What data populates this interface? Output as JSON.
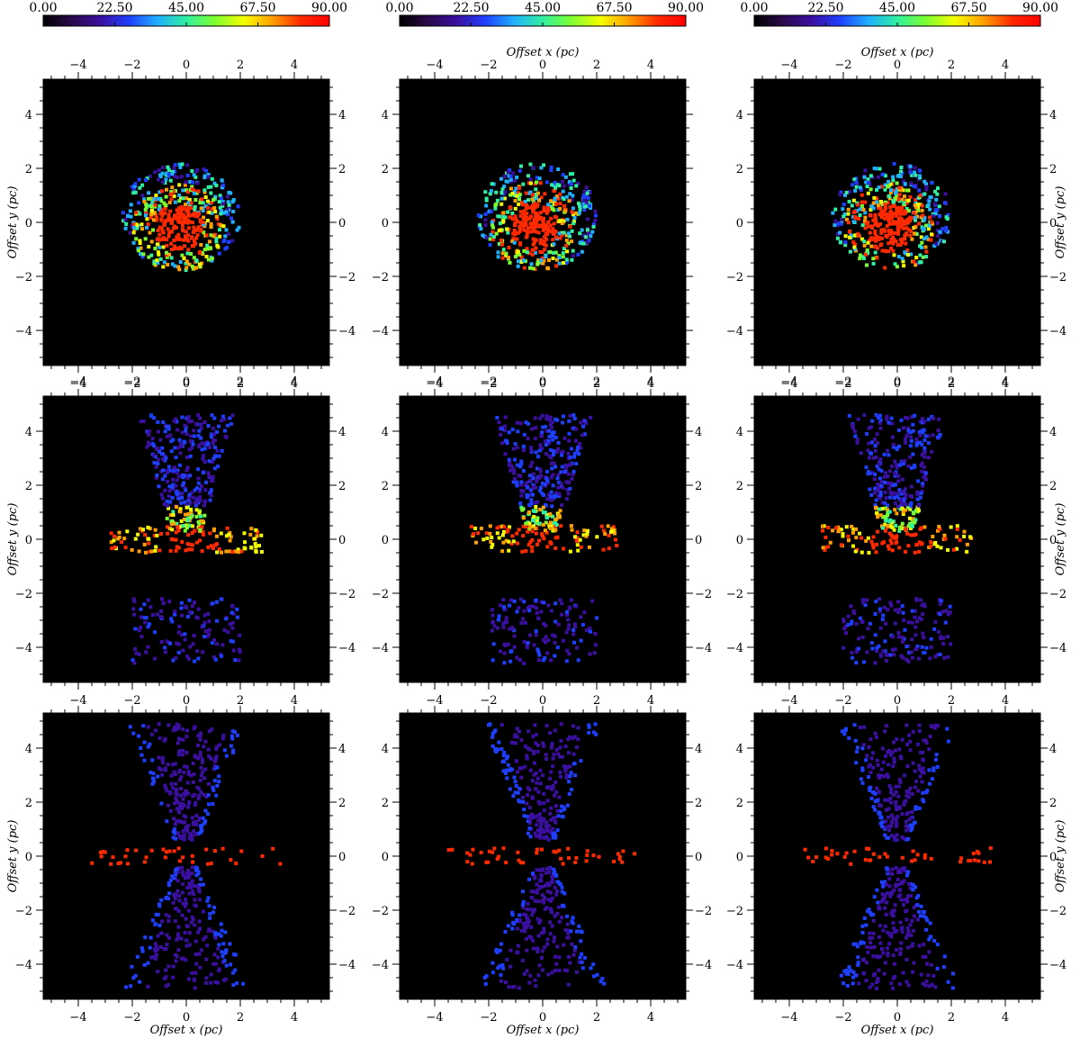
{
  "figure": {
    "colorbar_ticks": [
      "0.00",
      "22.50",
      "45.00",
      "67.50",
      "90.00"
    ],
    "xlabel": "Offset x (pc)",
    "ylabel": "Offset y (pc)",
    "x_tick_labels": [
      "−4",
      "−2",
      "0",
      "2",
      "4"
    ],
    "y_tick_labels": [
      "4",
      "2",
      "0",
      "−2",
      "−4"
    ],
    "colormap": [
      "#000000",
      "#2a0a4a",
      "#3b0fa0",
      "#1f3fff",
      "#1fb0ff",
      "#2ff0a0",
      "#7cff2f",
      "#f5ff00",
      "#ffa000",
      "#ff2a00",
      "#ff0000"
    ]
  },
  "chart_data": [
    {
      "type": "heatmap",
      "panel": "row1-col1",
      "colorbar_range": [
        0,
        90
      ],
      "xlim": [
        -5.3,
        5.3
      ],
      "ylim": [
        -5.3,
        5.3
      ],
      "xlabel": "",
      "ylabel": "Offset y (pc)",
      "x_tick_labels_top": true,
      "x_tick_labels_bottom": true,
      "y_tick_labels_left": true,
      "y_tick_labels_right": true,
      "morphology": "compact blob",
      "center_value": 85,
      "outer_value": 35
    },
    {
      "type": "heatmap",
      "panel": "row1-col2",
      "colorbar_range": [
        0,
        90
      ],
      "xlim": [
        -5.3,
        5.3
      ],
      "ylim": [
        -5.3,
        5.3
      ],
      "xlabel": "Offset x (pc)",
      "ylabel": "",
      "x_tick_labels_top": true,
      "x_tick_labels_bottom": true,
      "y_tick_labels_left": true,
      "y_tick_labels_right": false,
      "morphology": "compact blob",
      "center_value": 85,
      "outer_value": 35
    },
    {
      "type": "heatmap",
      "panel": "row1-col3",
      "colorbar_range": [
        0,
        90
      ],
      "xlim": [
        -5.3,
        5.3
      ],
      "ylim": [
        -5.3,
        5.3
      ],
      "xlabel": "Offset x (pc)",
      "ylabel": "Offset y (pc)",
      "x_tick_labels_top": true,
      "x_tick_labels_bottom": true,
      "y_tick_labels_left": true,
      "y_tick_labels_right": true,
      "morphology": "compact blob",
      "center_value": 85,
      "outer_value": 35
    },
    {
      "type": "heatmap",
      "panel": "row2-col1",
      "colorbar_range": [
        0,
        90
      ],
      "xlim": [
        -5.3,
        5.3
      ],
      "ylim": [
        -5.3,
        5.3
      ],
      "xlabel": "",
      "ylabel": "Offset y (pc)",
      "x_tick_labels_top": true,
      "x_tick_labels_bottom": true,
      "y_tick_labels_left": true,
      "y_tick_labels_right": true,
      "morphology": "bipolar outflow with equatorial disk",
      "center_value": 85,
      "outer_value": 20
    },
    {
      "type": "heatmap",
      "panel": "row2-col2",
      "colorbar_range": [
        0,
        90
      ],
      "xlim": [
        -5.3,
        5.3
      ],
      "ylim": [
        -5.3,
        5.3
      ],
      "xlabel": "",
      "ylabel": "",
      "x_tick_labels_top": true,
      "x_tick_labels_bottom": true,
      "y_tick_labels_left": true,
      "y_tick_labels_right": true,
      "morphology": "bipolar outflow with equatorial disk",
      "center_value": 85,
      "outer_value": 20
    },
    {
      "type": "heatmap",
      "panel": "row2-col3",
      "colorbar_range": [
        0,
        90
      ],
      "xlim": [
        -5.3,
        5.3
      ],
      "ylim": [
        -5.3,
        5.3
      ],
      "xlabel": "",
      "ylabel": "Offset y (pc)",
      "x_tick_labels_top": true,
      "x_tick_labels_bottom": true,
      "y_tick_labels_left": true,
      "y_tick_labels_right": true,
      "morphology": "bipolar outflow with equatorial disk",
      "center_value": 85,
      "outer_value": 20
    },
    {
      "type": "heatmap",
      "panel": "row3-col1",
      "colorbar_range": [
        0,
        90
      ],
      "xlim": [
        -5.3,
        5.3
      ],
      "ylim": [
        -5.3,
        5.3
      ],
      "xlabel": "Offset x (pc)",
      "ylabel": "Offset y (pc)",
      "x_tick_labels_top": false,
      "x_tick_labels_bottom": true,
      "y_tick_labels_left": true,
      "y_tick_labels_right": true,
      "morphology": "double cone",
      "center_value": 85,
      "outer_value": 20
    },
    {
      "type": "heatmap",
      "panel": "row3-col2",
      "colorbar_range": [
        0,
        90
      ],
      "xlim": [
        -5.3,
        5.3
      ],
      "ylim": [
        -5.3,
        5.3
      ],
      "xlabel": "Offset x (pc)",
      "ylabel": "",
      "x_tick_labels_top": false,
      "x_tick_labels_bottom": true,
      "y_tick_labels_left": true,
      "y_tick_labels_right": true,
      "morphology": "double cone",
      "center_value": 85,
      "outer_value": 20
    },
    {
      "type": "heatmap",
      "panel": "row3-col3",
      "colorbar_range": [
        0,
        90
      ],
      "xlim": [
        -5.3,
        5.3
      ],
      "ylim": [
        -5.3,
        5.3
      ],
      "xlabel": "Offset x (pc)",
      "ylabel": "Offset y (pc)",
      "x_tick_labels_top": false,
      "x_tick_labels_bottom": true,
      "y_tick_labels_left": true,
      "y_tick_labels_right": true,
      "morphology": "double cone",
      "center_value": 85,
      "outer_value": 20
    }
  ]
}
